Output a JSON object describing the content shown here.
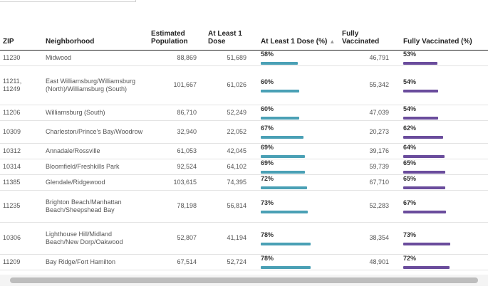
{
  "table": {
    "headers": {
      "zip": "ZIP",
      "neighborhood": "Neighborhood",
      "population": "Estimated Population",
      "one_dose": "At Least 1 Dose",
      "one_dose_pct": "At Least 1 Dose (%)",
      "sort_icon": "▲",
      "fully": "Fully Vaccinated",
      "fully_pct": "Fully Vaccinated (%)"
    },
    "rows": [
      {
        "zip": "11230",
        "neighborhood": "Midwood",
        "population": "88,869",
        "one_dose": "51,689",
        "one_dose_pct": "58%",
        "one_dose_frac": 0.58,
        "fully": "46,791",
        "fully_pct": "53%",
        "fully_frac": 0.53
      },
      {
        "zip": "11211, 11249",
        "neighborhood": "East Williamsburg/Williamsburg (North)/Williamsburg (South)",
        "population": "101,667",
        "one_dose": "61,026",
        "one_dose_pct": "60%",
        "one_dose_frac": 0.6,
        "fully": "55,342",
        "fully_pct": "54%",
        "fully_frac": 0.54
      },
      {
        "zip": "11206",
        "neighborhood": "Williamsburg (South)",
        "population": "86,710",
        "one_dose": "52,249",
        "one_dose_pct": "60%",
        "one_dose_frac": 0.6,
        "fully": "47,039",
        "fully_pct": "54%",
        "fully_frac": 0.54
      },
      {
        "zip": "10309",
        "neighborhood": "Charleston/Prince's Bay/Woodrow",
        "population": "32,940",
        "one_dose": "22,052",
        "one_dose_pct": "67%",
        "one_dose_frac": 0.67,
        "fully": "20,273",
        "fully_pct": "62%",
        "fully_frac": 0.62
      },
      {
        "zip": "10312",
        "neighborhood": "Annadale/Rossville",
        "population": "61,053",
        "one_dose": "42,045",
        "one_dose_pct": "69%",
        "one_dose_frac": 0.69,
        "fully": "39,176",
        "fully_pct": "64%",
        "fully_frac": 0.64
      },
      {
        "zip": "10314",
        "neighborhood": "Bloomfield/Freshkills Park",
        "population": "92,524",
        "one_dose": "64,102",
        "one_dose_pct": "69%",
        "one_dose_frac": 0.69,
        "fully": "59,739",
        "fully_pct": "65%",
        "fully_frac": 0.65
      },
      {
        "zip": "11385",
        "neighborhood": "Glendale/Ridgewood",
        "population": "103,615",
        "one_dose": "74,395",
        "one_dose_pct": "72%",
        "one_dose_frac": 0.72,
        "fully": "67,710",
        "fully_pct": "65%",
        "fully_frac": 0.65
      },
      {
        "zip": "11235",
        "neighborhood": "Brighton Beach/Manhattan Beach/Sheepshead Bay",
        "population": "78,198",
        "one_dose": "56,814",
        "one_dose_pct": "73%",
        "one_dose_frac": 0.73,
        "fully": "52,283",
        "fully_pct": "67%",
        "fully_frac": 0.67
      },
      {
        "zip": "10306",
        "neighborhood": "Lighthouse Hill/Midland Beach/New Dorp/Oakwood",
        "population": "52,807",
        "one_dose": "41,194",
        "one_dose_pct": "78%",
        "one_dose_frac": 0.78,
        "fully": "38,354",
        "fully_pct": "73%",
        "fully_frac": 0.73
      },
      {
        "zip": "11209",
        "neighborhood": "Bay Ridge/Fort Hamilton",
        "population": "67,514",
        "one_dose": "52,724",
        "one_dose_pct": "78%",
        "one_dose_frac": 0.78,
        "fully": "48,901",
        "fully_pct": "72%",
        "fully_frac": 0.72
      }
    ]
  },
  "colors": {
    "one_dose_bar": "#4aa0b5",
    "fully_bar": "#6a4c9c"
  }
}
